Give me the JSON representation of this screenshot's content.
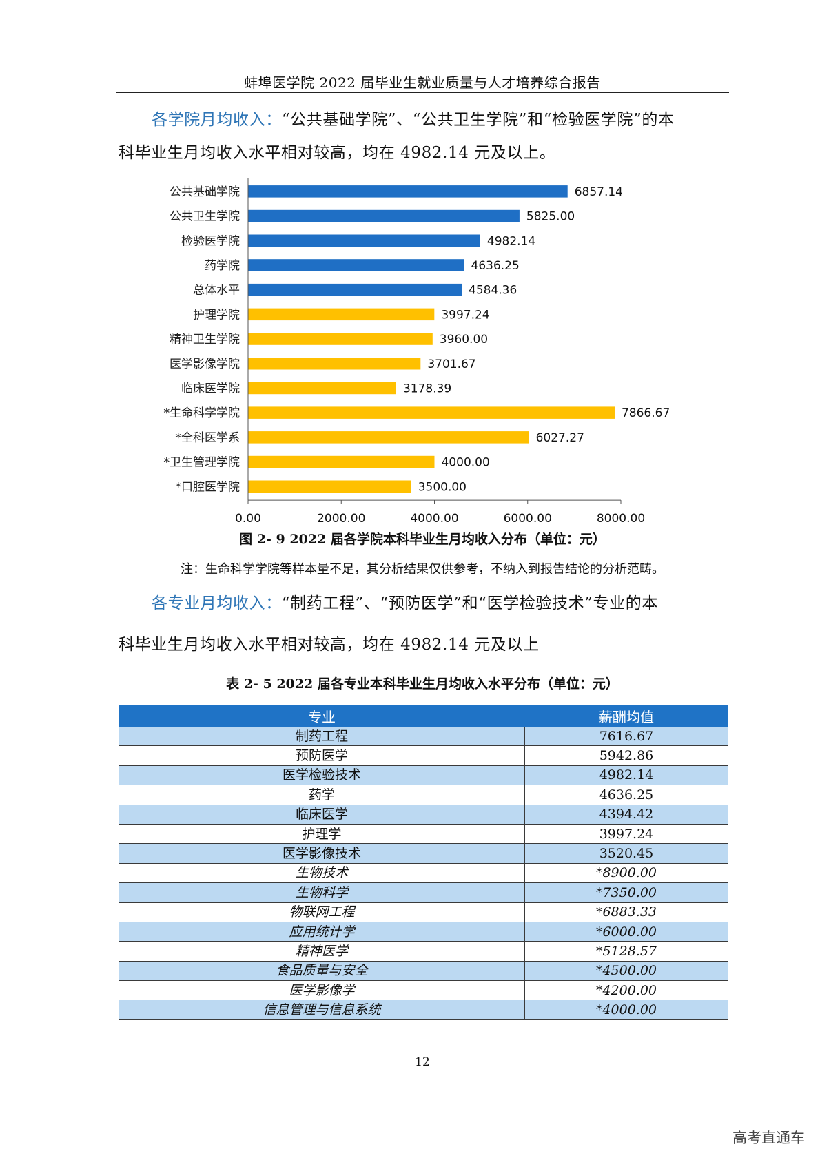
{
  "header": {
    "title": "蚌埠医学院 2022 届毕业生就业质量与人才培养综合报告"
  },
  "para1": {
    "lead": "各学院月均收入：",
    "body_line1": "“公共基础学院”、“公共卫生学院”和“检验医学院”的本",
    "body_line2": "科毕业生月均收入水平相对较高，均在 4982.14 元及以上。"
  },
  "chart_data": {
    "type": "bar",
    "orientation": "horizontal",
    "categories": [
      "公共基础学院",
      "公共卫生学院",
      "检验医学院",
      "药学院",
      "总体水平",
      "护理学院",
      "精神卫生学院",
      "医学影像学院",
      "临床医学院",
      "*生命科学学院",
      "*全科医学系",
      "*卫生管理学院",
      "*口腔医学院"
    ],
    "values": [
      6857.14,
      5825.0,
      4982.14,
      4636.25,
      4584.36,
      3997.24,
      3960.0,
      3701.67,
      3178.39,
      7866.67,
      6027.27,
      4000.0,
      3500.0
    ],
    "value_labels": [
      "6857.14",
      "5825.00",
      "4982.14",
      "4636.25",
      "4584.36",
      "3997.24",
      "3960.00",
      "3701.67",
      "3178.39",
      "7866.67",
      "6027.27",
      "4000.00",
      "3500.00"
    ],
    "bar_colors": [
      "#1f6fc5",
      "#1f6fc5",
      "#1f6fc5",
      "#1f6fc5",
      "#1f6fc5",
      "#ffc000",
      "#ffc000",
      "#ffc000",
      "#ffc000",
      "#ffc000",
      "#ffc000",
      "#ffc000",
      "#ffc000"
    ],
    "xlim": [
      0,
      8000
    ],
    "xticks": [
      "0.00",
      "2000.00",
      "4000.00",
      "6000.00",
      "8000.00"
    ],
    "grid": false
  },
  "figure_caption": "图 2- 9  2022 届各学院本科毕业生月均收入分布（单位：元）",
  "note": "注：生命科学学院等样本量不足，其分析结果仅供参考，不纳入到报告结论的分析范畴。",
  "para2": {
    "lead": "各专业月均收入：",
    "body_line1": "“制药工程”、“预防医学”和“医学检验技术”专业的本",
    "body_line2": "科毕业生月均收入水平相对较高，均在 4982.14 元及以上"
  },
  "table_caption": "表 2- 5  2022 届各专业本科毕业生月均收入水平分布（单位：元）",
  "table": {
    "headers": [
      "专业",
      "薪酬均值"
    ],
    "rows": [
      [
        "制药工程",
        "7616.67"
      ],
      [
        "预防医学",
        "5942.86"
      ],
      [
        "医学检验技术",
        "4982.14"
      ],
      [
        "药学",
        "4636.25"
      ],
      [
        "临床医学",
        "4394.42"
      ],
      [
        "护理学",
        "3997.24"
      ],
      [
        "医学影像技术",
        "3520.45"
      ],
      [
        "生物技术",
        "*8900.00"
      ],
      [
        "生物科学",
        "*7350.00"
      ],
      [
        "物联网工程",
        "*6883.33"
      ],
      [
        "应用统计学",
        "*6000.00"
      ],
      [
        "精神医学",
        "*5128.57"
      ],
      [
        "食品质量与安全",
        "*4500.00"
      ],
      [
        "医学影像学",
        "*4200.00"
      ],
      [
        "信息管理与信息系统",
        "*4000.00"
      ]
    ]
  },
  "page_number": "12",
  "watermark": "高考直通车",
  "colors": {
    "accent": "#2e75b6",
    "table_header": "#1f73c6",
    "table_alt_row": "#bcd9f2"
  }
}
